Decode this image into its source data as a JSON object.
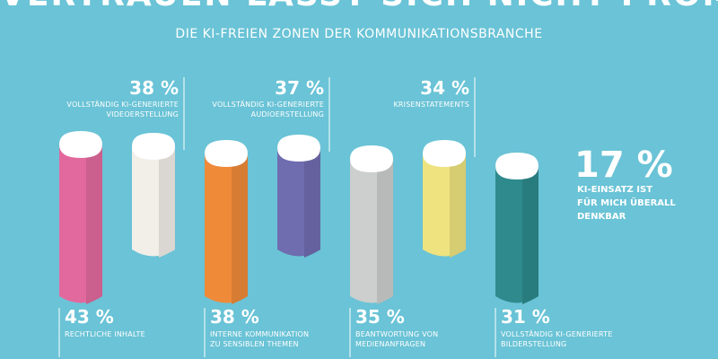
{
  "header": {
    "title": "VERTRAUEN LÄSST SICH NICHT PROMPTEN",
    "subtitle": "DIE KI-FREIEN ZONEN DER KOMMUNIKATIONSBRANCHE"
  },
  "callout": {
    "value": "17 %",
    "lines": [
      "KI-EINSATZ IST",
      "FÜR MICH ÜBERALL",
      "DENKBAR"
    ]
  },
  "chart_data": {
    "type": "bar",
    "title": "DIE KI-FREIEN ZONEN DER KOMMUNIKATIONSBRANCHE",
    "unit": "%",
    "categories": [
      "RECHTLICHE INHALTE",
      "VOLLSTÄNDIG KI-GENERIERTE VIDEOERSTELLUNG",
      "INTERNE KOMMUNIKATION ZU SENSIBLEN THEMEN",
      "VOLLSTÄNDIG KI-GENERIERTE AUDIOERSTELLUNG",
      "BEANTWORTUNG VON MEDIENANFRAGEN",
      "KRISENSTATEMENTS",
      "VOLLSTÄNDIG KI-GENERIERTE BILDERSTELLUNG"
    ],
    "values": [
      43,
      38,
      38,
      37,
      35,
      34,
      31
    ],
    "value_labels": [
      "43 %",
      "38 %",
      "38 %",
      "37 %",
      "35 %",
      "34 %",
      "31 %"
    ],
    "label_lines": [
      [
        "RECHTLICHE INHALTE"
      ],
      [
        "VOLLSTÄNDIG KI-GENERIERTE",
        "VIDEOERSTELLUNG"
      ],
      [
        "INTERNE KOMMUNIKATION",
        "ZU SENSIBLEN THEMEN"
      ],
      [
        "VOLLSTÄNDIG KI-GENERIERTE",
        "AUDIOERSTELLUNG"
      ],
      [
        "BEANTWORTUNG VON",
        "MEDIENANFRAGEN"
      ],
      [
        "KRISENSTATEMENTS"
      ],
      [
        "VOLLSTÄNDIG KI-GENERIERTE",
        "BILDERSTELLUNG"
      ]
    ],
    "colors": [
      "#e2699e",
      "#f2eee8",
      "#ef8a39",
      "#6f6cb0",
      "#cccfcd",
      "#eee37f",
      "#2e8a8c"
    ]
  }
}
